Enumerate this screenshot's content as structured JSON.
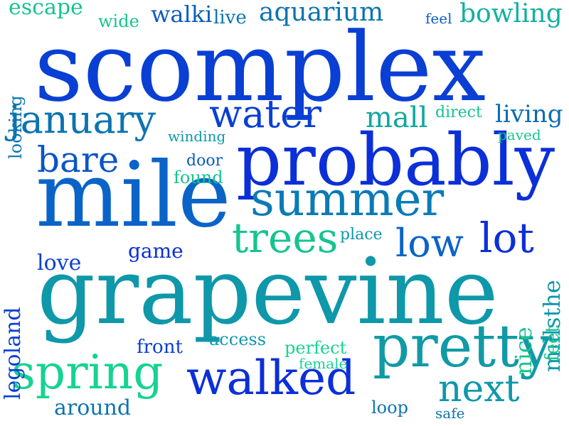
{
  "words": [
    {
      "text": "scomplex",
      "color": "#0a3fd4"
    },
    {
      "text": "grapevine",
      "color": "#0e98aa"
    },
    {
      "text": "mile",
      "color": "#0a64c8"
    },
    {
      "text": "probably",
      "color": "#0b2fd8"
    },
    {
      "text": "pretty",
      "color": "#119aa6"
    },
    {
      "text": "summer",
      "color": "#0a7bb6"
    },
    {
      "text": "walked",
      "color": "#0b2fd8"
    },
    {
      "text": "spring",
      "color": "#16d391"
    },
    {
      "text": "trees",
      "color": "#16c48f"
    },
    {
      "text": "next",
      "color": "#0e98aa"
    },
    {
      "text": "january",
      "color": "#0c74b0"
    },
    {
      "text": "water",
      "color": "#0a3fd4"
    },
    {
      "text": "low",
      "color": "#0a64c8"
    },
    {
      "text": "lot",
      "color": "#0b2fd8"
    },
    {
      "text": "bare",
      "color": "#0a55c6"
    },
    {
      "text": "mall",
      "color": "#12a8a0"
    },
    {
      "text": "living",
      "color": "#0c6cb4"
    },
    {
      "text": "bowling",
      "color": "#12b0a0"
    },
    {
      "text": "aquarium",
      "color": "#0c74b0"
    },
    {
      "text": "walki",
      "color": "#0c5cc0"
    },
    {
      "text": "escape",
      "color": "#16c48f"
    },
    {
      "text": "wide",
      "color": "#16c48f"
    },
    {
      "text": "live",
      "color": "#0c74b0"
    },
    {
      "text": "feel",
      "color": "#0c5cc0"
    },
    {
      "text": "looking",
      "color": "#0c74b0"
    },
    {
      "text": "direct",
      "color": "#16c48f"
    },
    {
      "text": "paved",
      "color": "#16c48f"
    },
    {
      "text": "winding",
      "color": "#0e98aa"
    },
    {
      "text": "door",
      "color": "#0c5cc0"
    },
    {
      "text": "found",
      "color": "#16c48f"
    },
    {
      "text": "place",
      "color": "#0e98aa"
    },
    {
      "text": "game",
      "color": "#0b2fd8"
    },
    {
      "text": "love",
      "color": "#0a3fd4"
    },
    {
      "text": "legoland",
      "color": "#0a3fd4"
    },
    {
      "text": "millsthe",
      "color": "#0e98aa"
    },
    {
      "text": "nice",
      "color": "#16c48f"
    },
    {
      "text": "feet",
      "color": "#16c48f"
    },
    {
      "text": "front",
      "color": "#0a3fd4"
    },
    {
      "text": "access",
      "color": "#0e98aa"
    },
    {
      "text": "perfect",
      "color": "#16d391"
    },
    {
      "text": "female",
      "color": "#16d391"
    },
    {
      "text": "around",
      "color": "#0c74b0"
    },
    {
      "text": "loop",
      "color": "#0c74b0"
    },
    {
      "text": "safe",
      "color": "#0c74b0"
    }
  ]
}
